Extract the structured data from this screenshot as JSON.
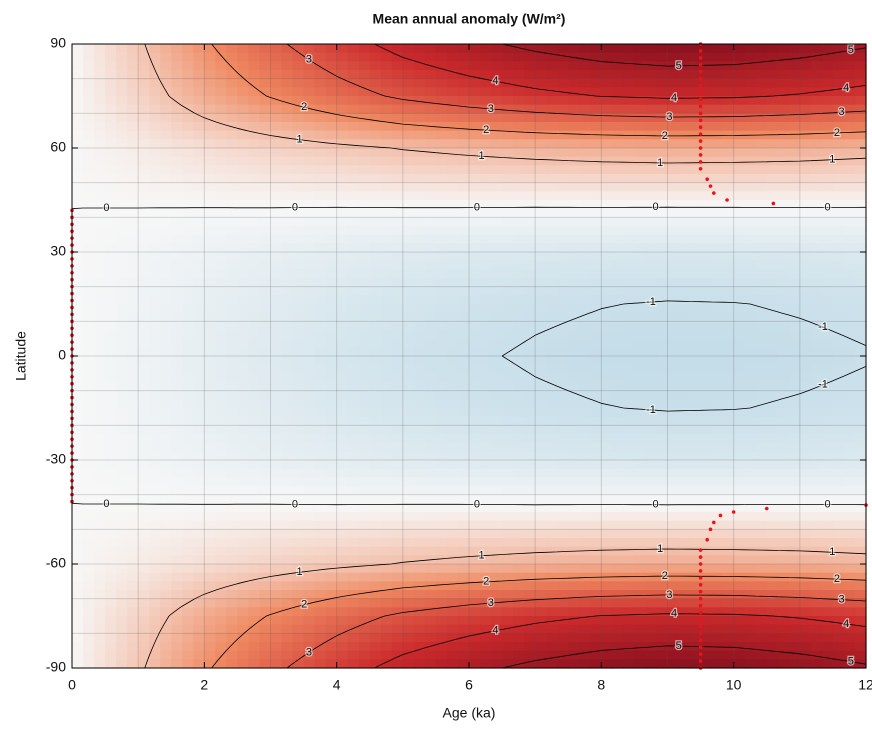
{
  "chart_data": {
    "type": "contour",
    "title": "Mean annual anomaly (W/m²)",
    "x_label": "Age (ka)",
    "y_label": "Latitude",
    "xlim": [
      0,
      12
    ],
    "ylim": [
      -90,
      90
    ],
    "xticks": [
      0,
      2,
      4,
      6,
      8,
      10,
      12
    ],
    "yticks": [
      -90,
      -60,
      -30,
      0,
      30,
      60,
      90
    ],
    "xgrid": [
      1,
      2,
      3,
      4,
      5,
      6,
      7,
      8,
      9,
      10,
      11
    ],
    "ygrid": [
      -80,
      -70,
      -60,
      -50,
      -40,
      -30,
      -20,
      -10,
      0,
      10,
      20,
      30,
      40,
      50,
      60,
      70,
      80
    ],
    "colormap": [
      "#2166ac",
      "#4a8fc2",
      "#9cc8dd",
      "#f7f7f7",
      "#ef8a62",
      "#cb2a2c",
      "#7a0b1c"
    ],
    "clim": [
      -6,
      6
    ],
    "contour_levels": [
      -1,
      0,
      1,
      2,
      3,
      4,
      5
    ],
    "x": [
      0,
      1,
      2,
      3,
      4,
      5,
      6,
      7,
      8,
      9,
      10,
      11,
      12
    ],
    "y": [
      90,
      75,
      60,
      45,
      30,
      15,
      0,
      -15,
      -30,
      -45,
      -60,
      -75,
      -90
    ],
    "values": [
      [
        0,
        0.9,
        1.9,
        2.8,
        3.6,
        4.3,
        4.8,
        5.2,
        5.5,
        5.65,
        5.6,
        5.4,
        5.1
      ],
      [
        0,
        0.66,
        1.39,
        2.04,
        2.63,
        3.14,
        3.5,
        3.8,
        4.02,
        4.12,
        4.09,
        3.94,
        3.72
      ],
      [
        0,
        0.22,
        0.46,
        0.67,
        0.86,
        1.03,
        1.15,
        1.25,
        1.32,
        1.36,
        1.34,
        1.3,
        1.22
      ],
      [
        0,
        0.02,
        0.04,
        0.06,
        0.07,
        0.09,
        0.1,
        0.1,
        0.11,
        0.11,
        0.11,
        0.11,
        0.1
      ],
      [
        0,
        -0.11,
        -0.23,
        -0.34,
        -0.43,
        -0.52,
        -0.58,
        -0.62,
        -0.66,
        -0.68,
        -0.67,
        -0.65,
        -0.61
      ],
      [
        0,
        -0.16,
        -0.34,
        -0.5,
        -0.65,
        -0.77,
        -0.86,
        -0.94,
        -0.99,
        -1.02,
        -1.01,
        -0.97,
        -0.92
      ],
      [
        0,
        -0.18,
        -0.38,
        -0.56,
        -0.72,
        -0.86,
        -0.96,
        -1.04,
        -1.1,
        -1.13,
        -1.12,
        -1.08,
        -1.02
      ],
      [
        0,
        -0.16,
        -0.34,
        -0.5,
        -0.65,
        -0.77,
        -0.86,
        -0.94,
        -0.99,
        -1.02,
        -1.01,
        -0.97,
        -0.92
      ],
      [
        0,
        -0.11,
        -0.23,
        -0.34,
        -0.43,
        -0.52,
        -0.58,
        -0.62,
        -0.66,
        -0.68,
        -0.67,
        -0.65,
        -0.61
      ],
      [
        0,
        0.02,
        0.04,
        0.06,
        0.07,
        0.09,
        0.1,
        0.1,
        0.11,
        0.11,
        0.11,
        0.11,
        0.1
      ],
      [
        0,
        0.22,
        0.46,
        0.67,
        0.86,
        1.03,
        1.15,
        1.25,
        1.32,
        1.36,
        1.34,
        1.3,
        1.22
      ],
      [
        0,
        0.66,
        1.39,
        2.04,
        2.63,
        3.14,
        3.5,
        3.8,
        4.02,
        4.12,
        4.09,
        3.94,
        3.72
      ],
      [
        0,
        0.9,
        1.9,
        2.8,
        3.6,
        4.3,
        4.8,
        5.2,
        5.5,
        5.65,
        5.6,
        5.4,
        5.1
      ]
    ],
    "points": {
      "color": "#e8141c",
      "x": [
        0,
        0,
        0,
        0,
        0,
        0,
        0,
        0,
        0,
        0,
        0,
        0,
        0,
        0,
        0,
        0,
        0,
        0,
        0,
        0,
        0,
        0,
        0,
        0,
        0,
        0,
        0,
        0,
        0,
        0,
        0,
        0,
        0,
        0,
        0,
        0,
        0,
        0,
        0,
        0,
        0,
        0,
        0,
        9.5,
        9.5,
        9.5,
        9.5,
        9.5,
        9.5,
        9.5,
        9.5,
        9.5,
        9.5,
        9.5,
        9.5,
        9.5,
        9.5,
        9.5,
        9.5,
        9.5,
        9.5,
        9.5,
        9.5,
        9.5,
        9.5,
        9.5,
        9.5,
        9.5,
        9.5,
        9.5,
        9.5,
        9.5,
        9.5,
        9.5,
        9.5,
        9.5,
        9.5,
        9.5,
        9.5,
        9.5,
        9.6,
        9.65,
        9.7,
        9.9,
        10.6,
        9.6,
        9.65,
        9.7,
        9.8,
        10.0,
        10.5,
        12
      ],
      "y": [
        -42,
        -40,
        -38,
        -36,
        -34,
        -32,
        -30,
        -28,
        -26,
        -24,
        -22,
        -20,
        -18,
        -16,
        -14,
        -12,
        -10,
        -8,
        -6,
        -4,
        -2,
        0,
        2,
        4,
        6,
        8,
        10,
        12,
        14,
        16,
        18,
        20,
        22,
        24,
        26,
        28,
        30,
        32,
        34,
        36,
        38,
        40,
        42,
        54,
        56,
        58,
        60,
        62,
        64,
        66,
        68,
        70,
        72,
        74,
        76,
        78,
        80,
        82,
        84,
        86,
        88,
        90,
        -90,
        -88,
        -86,
        -84,
        -82,
        -80,
        -78,
        -76,
        -74,
        -72,
        -70,
        -68,
        -66,
        -64,
        -62,
        -60,
        -58,
        -56,
        51,
        49,
        47,
        45,
        44,
        -53,
        -50,
        -48,
        -46,
        -45,
        -44,
        -43
      ]
    }
  }
}
